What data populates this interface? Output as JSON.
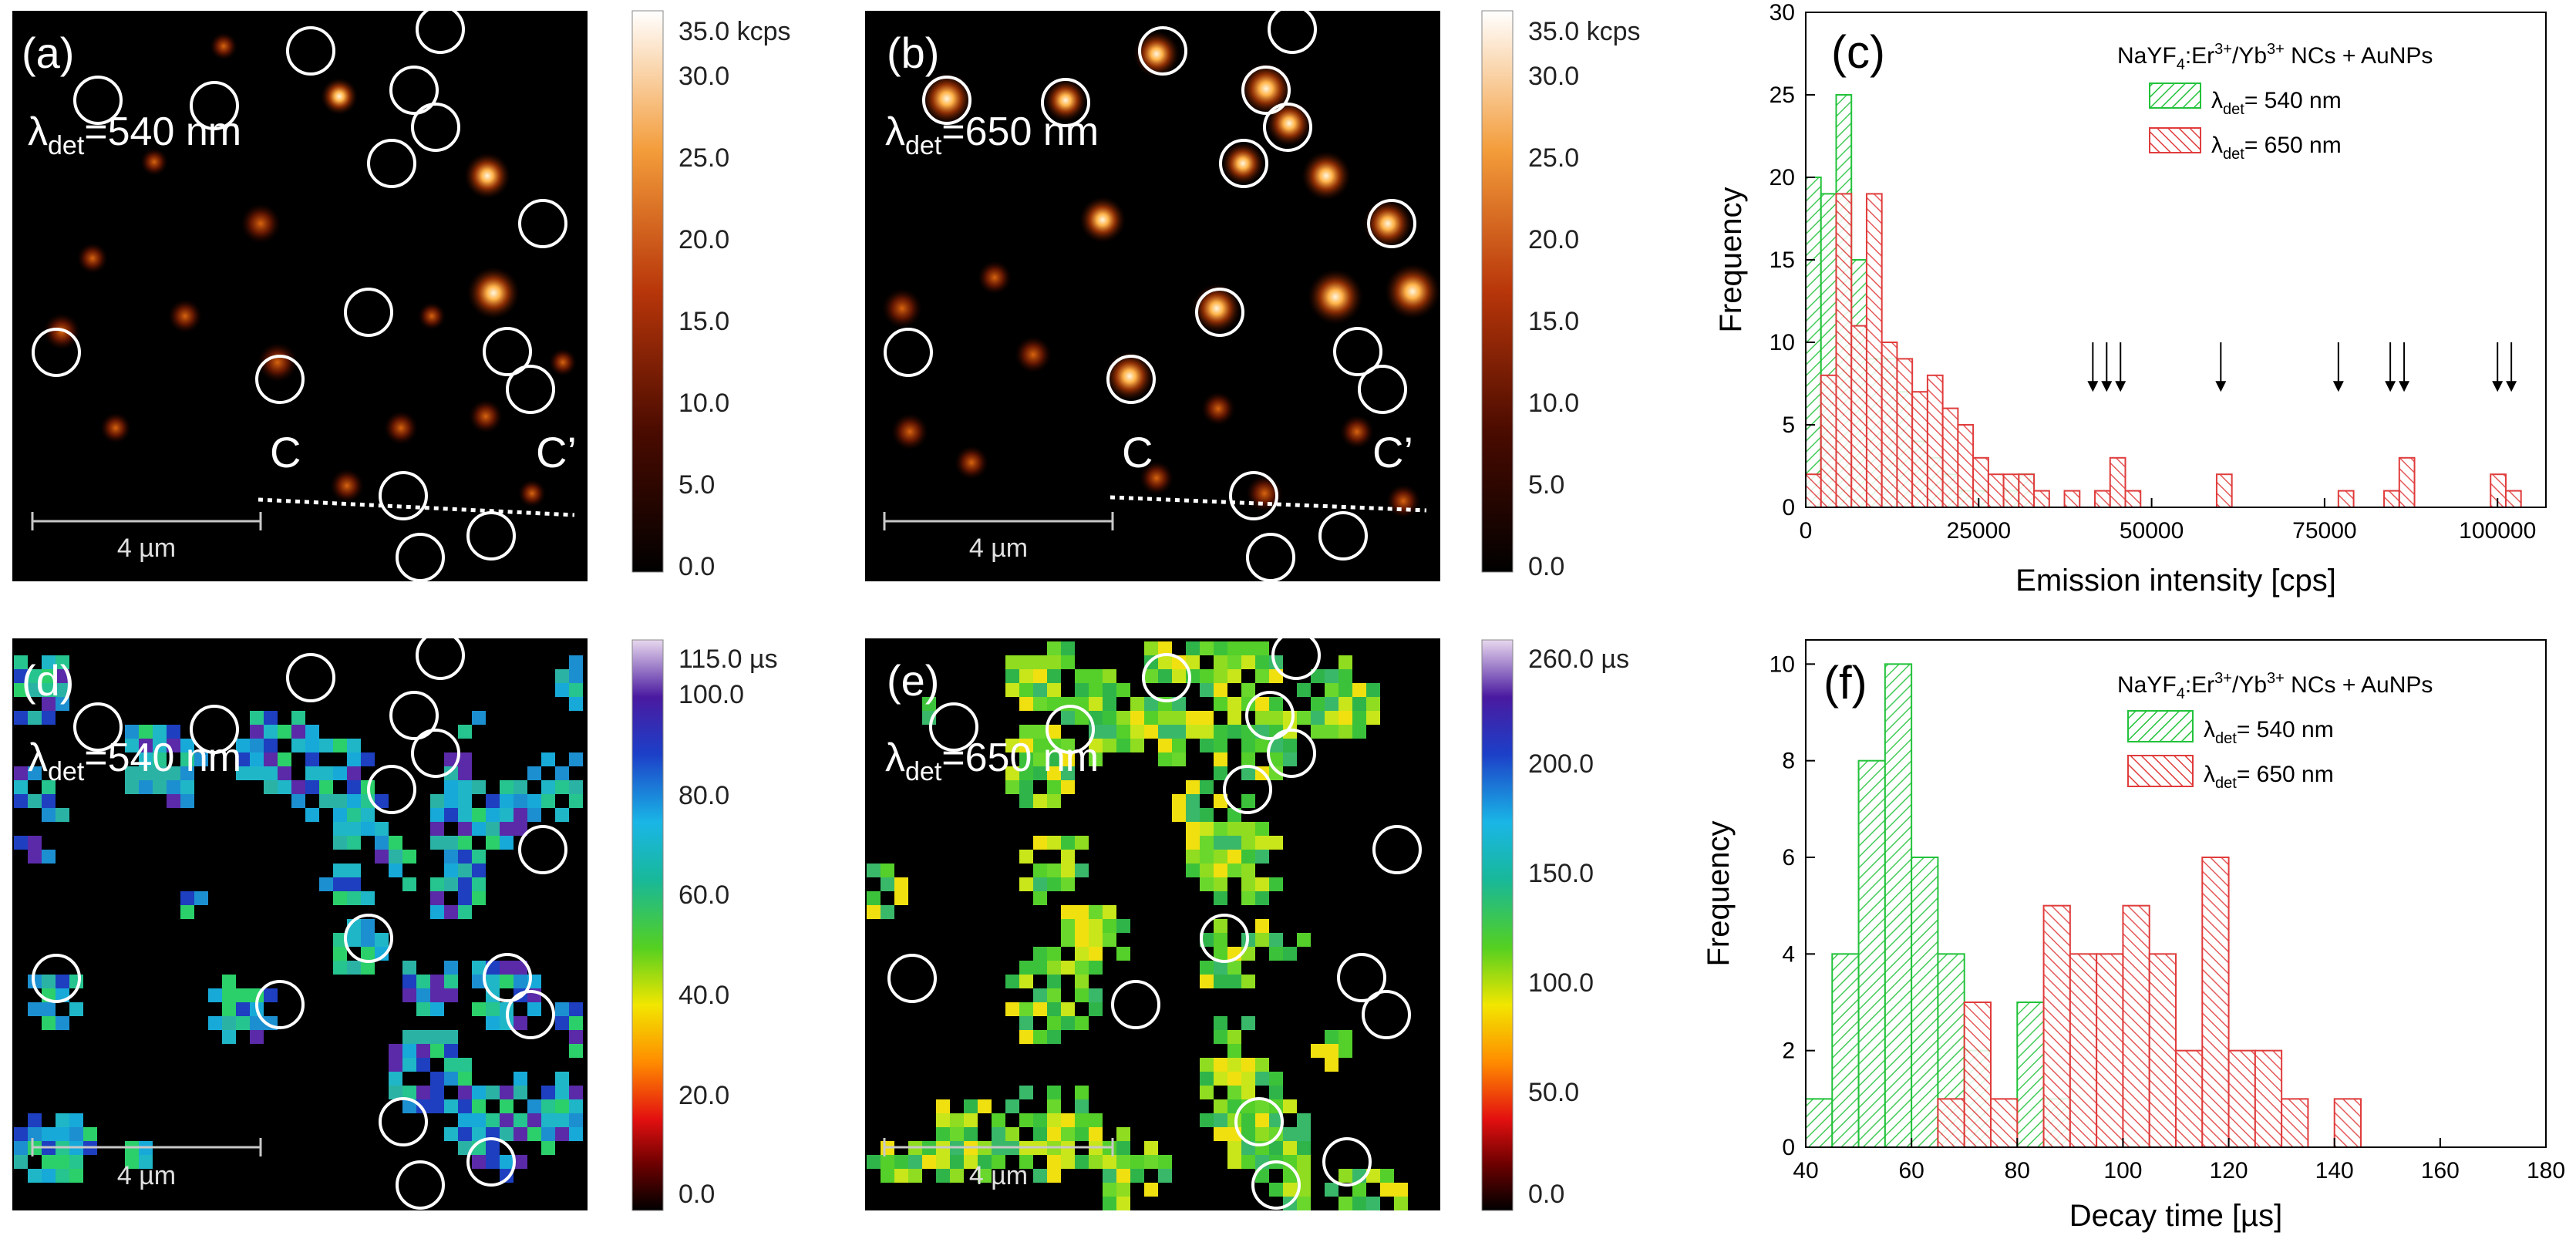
{
  "colors": {
    "green_series": "#22c23a",
    "red_series": "#e03c3c",
    "heat_low": "#000000",
    "heat_high": "#ffffff",
    "circle": "#ffffff"
  },
  "panels": {
    "a": {
      "label": "(a)",
      "lambda_prefix": "λ",
      "lambda_sub": "det",
      "lambda_value": "=540 nm",
      "scalebar": "4 µm",
      "c_left": "C",
      "c_right": "C’"
    },
    "b": {
      "label": "(b)",
      "lambda_prefix": "λ",
      "lambda_sub": "det",
      "lambda_value": "=650 nm",
      "scalebar": "4 µm",
      "c_left": "C",
      "c_right": "C’"
    },
    "d": {
      "label": "(d)",
      "lambda_prefix": "λ",
      "lambda_sub": "det",
      "lambda_value": "=540 nm",
      "scalebar": "4 µm"
    },
    "e": {
      "label": "(e)",
      "lambda_prefix": "λ",
      "lambda_sub": "det",
      "lambda_value": "=650 nm",
      "scalebar": "4 µm"
    }
  },
  "colorbars": {
    "intensity_a": {
      "ticks": [
        "35.0 kcps",
        "30.0",
        "25.0",
        "20.0",
        "15.0",
        "10.0",
        "5.0",
        "0.0"
      ]
    },
    "intensity_b": {
      "ticks": [
        "35.0 kcps",
        "30.0",
        "25.0",
        "20.0",
        "15.0",
        "10.0",
        "5.0",
        "0.0"
      ]
    },
    "lifetime_d": {
      "ticks": [
        "115.0 µs",
        "100.0",
        "80.0",
        "60.0",
        "40.0",
        "20.0",
        "0.0"
      ]
    },
    "lifetime_e": {
      "ticks": [
        "260.0 µs",
        "200.0",
        "150.0",
        "100.0",
        "50.0",
        "0.0"
      ]
    }
  },
  "chart_data": [
    {
      "id": "c",
      "type": "bar",
      "panel_label": "(c)",
      "legend_title": "NaYF4:Er3+/Yb3+ NCs + AuNPs",
      "title_parts": {
        "a": "NaYF",
        "b": "4",
        "c": ":Er",
        "d": "3+",
        "e": "/Yb",
        "f": "3+",
        "g": " NCs + AuNPs"
      },
      "legend_sub": "det",
      "xlabel": "Emission intensity [cps]",
      "ylabel": "Frequency",
      "xlim": [
        0,
        107000
      ],
      "ylim": [
        0,
        30
      ],
      "xticks": [
        0,
        25000,
        50000,
        75000,
        100000
      ],
      "yticks": [
        0,
        5,
        10,
        15,
        20,
        25,
        30
      ],
      "bin_width": 2200,
      "series": [
        {
          "name": "λdet= 540 nm",
          "legend_value": "= 540 nm",
          "color": "#22c23a",
          "bins": [
            {
              "start": 0,
              "value": 20
            },
            {
              "start": 2200,
              "value": 19
            },
            {
              "start": 4400,
              "value": 25
            },
            {
              "start": 6600,
              "value": 15
            },
            {
              "start": 8800,
              "value": 9
            },
            {
              "start": 11000,
              "value": 9
            },
            {
              "start": 13200,
              "value": 7
            },
            {
              "start": 15400,
              "value": 4
            },
            {
              "start": 17600,
              "value": 3
            },
            {
              "start": 19800,
              "value": 2
            },
            {
              "start": 22000,
              "value": 1
            },
            {
              "start": 24200,
              "value": 1
            },
            {
              "start": 28600,
              "value": 1
            },
            {
              "start": 30800,
              "value": 2
            }
          ]
        },
        {
          "name": "λdet= 650 nm",
          "legend_value": "= 650 nm",
          "color": "#e03c3c",
          "bins": [
            {
              "start": 0,
              "value": 2
            },
            {
              "start": 2200,
              "value": 8
            },
            {
              "start": 4400,
              "value": 19
            },
            {
              "start": 6600,
              "value": 11
            },
            {
              "start": 8800,
              "value": 19
            },
            {
              "start": 11000,
              "value": 10
            },
            {
              "start": 13200,
              "value": 9
            },
            {
              "start": 15400,
              "value": 7
            },
            {
              "start": 17600,
              "value": 8
            },
            {
              "start": 19800,
              "value": 6
            },
            {
              "start": 22000,
              "value": 5
            },
            {
              "start": 24200,
              "value": 3
            },
            {
              "start": 26400,
              "value": 2
            },
            {
              "start": 28600,
              "value": 2
            },
            {
              "start": 30800,
              "value": 2
            },
            {
              "start": 33000,
              "value": 1
            },
            {
              "start": 37400,
              "value": 1
            },
            {
              "start": 41800,
              "value": 1
            },
            {
              "start": 44000,
              "value": 3
            },
            {
              "start": 46200,
              "value": 1
            },
            {
              "start": 59400,
              "value": 2
            },
            {
              "start": 77000,
              "value": 1
            },
            {
              "start": 83600,
              "value": 1
            },
            {
              "start": 85800,
              "value": 3
            },
            {
              "start": 99000,
              "value": 2
            },
            {
              "start": 101200,
              "value": 1
            }
          ]
        }
      ],
      "arrows_x": [
        41500,
        43500,
        45500,
        60000,
        77000,
        84500,
        86500,
        100000,
        102000
      ],
      "arrows_y": [
        10,
        7
      ]
    },
    {
      "id": "f",
      "type": "bar",
      "panel_label": "(f)",
      "legend_title": "NaYF4:Er3+/Yb3+ NCs + AuNPs",
      "title_parts": {
        "a": "NaYF",
        "b": "4",
        "c": ":Er",
        "d": "3+",
        "e": "/Yb",
        "f": "3+",
        "g": " NCs + AuNPs"
      },
      "legend_sub": "det",
      "xlabel": "Decay time [µs]",
      "ylabel": "Frequency",
      "xlim": [
        40,
        180
      ],
      "ylim": [
        0,
        10.5
      ],
      "xticks": [
        40,
        60,
        80,
        100,
        120,
        140,
        160,
        180
      ],
      "yticks": [
        0,
        2,
        4,
        6,
        8,
        10
      ],
      "bin_width": 5,
      "series": [
        {
          "name": "λdet= 540 nm",
          "legend_value": "= 540 nm",
          "color": "#22c23a",
          "bins": [
            {
              "start": 40,
              "value": 1
            },
            {
              "start": 45,
              "value": 4
            },
            {
              "start": 50,
              "value": 8
            },
            {
              "start": 55,
              "value": 10
            },
            {
              "start": 60,
              "value": 6
            },
            {
              "start": 65,
              "value": 4
            },
            {
              "start": 70,
              "value": 2
            },
            {
              "start": 80,
              "value": 3
            },
            {
              "start": 85,
              "value": 1
            }
          ]
        },
        {
          "name": "λdet= 650 nm",
          "legend_value": "= 650 nm",
          "color": "#e03c3c",
          "bins": [
            {
              "start": 65,
              "value": 1
            },
            {
              "start": 70,
              "value": 3
            },
            {
              "start": 75,
              "value": 1
            },
            {
              "start": 85,
              "value": 5
            },
            {
              "start": 90,
              "value": 4
            },
            {
              "start": 95,
              "value": 4
            },
            {
              "start": 100,
              "value": 5
            },
            {
              "start": 105,
              "value": 4
            },
            {
              "start": 110,
              "value": 2
            },
            {
              "start": 115,
              "value": 6
            },
            {
              "start": 120,
              "value": 2
            },
            {
              "start": 125,
              "value": 2
            },
            {
              "start": 130,
              "value": 1
            },
            {
              "start": 140,
              "value": 1
            }
          ]
        }
      ]
    }
  ]
}
